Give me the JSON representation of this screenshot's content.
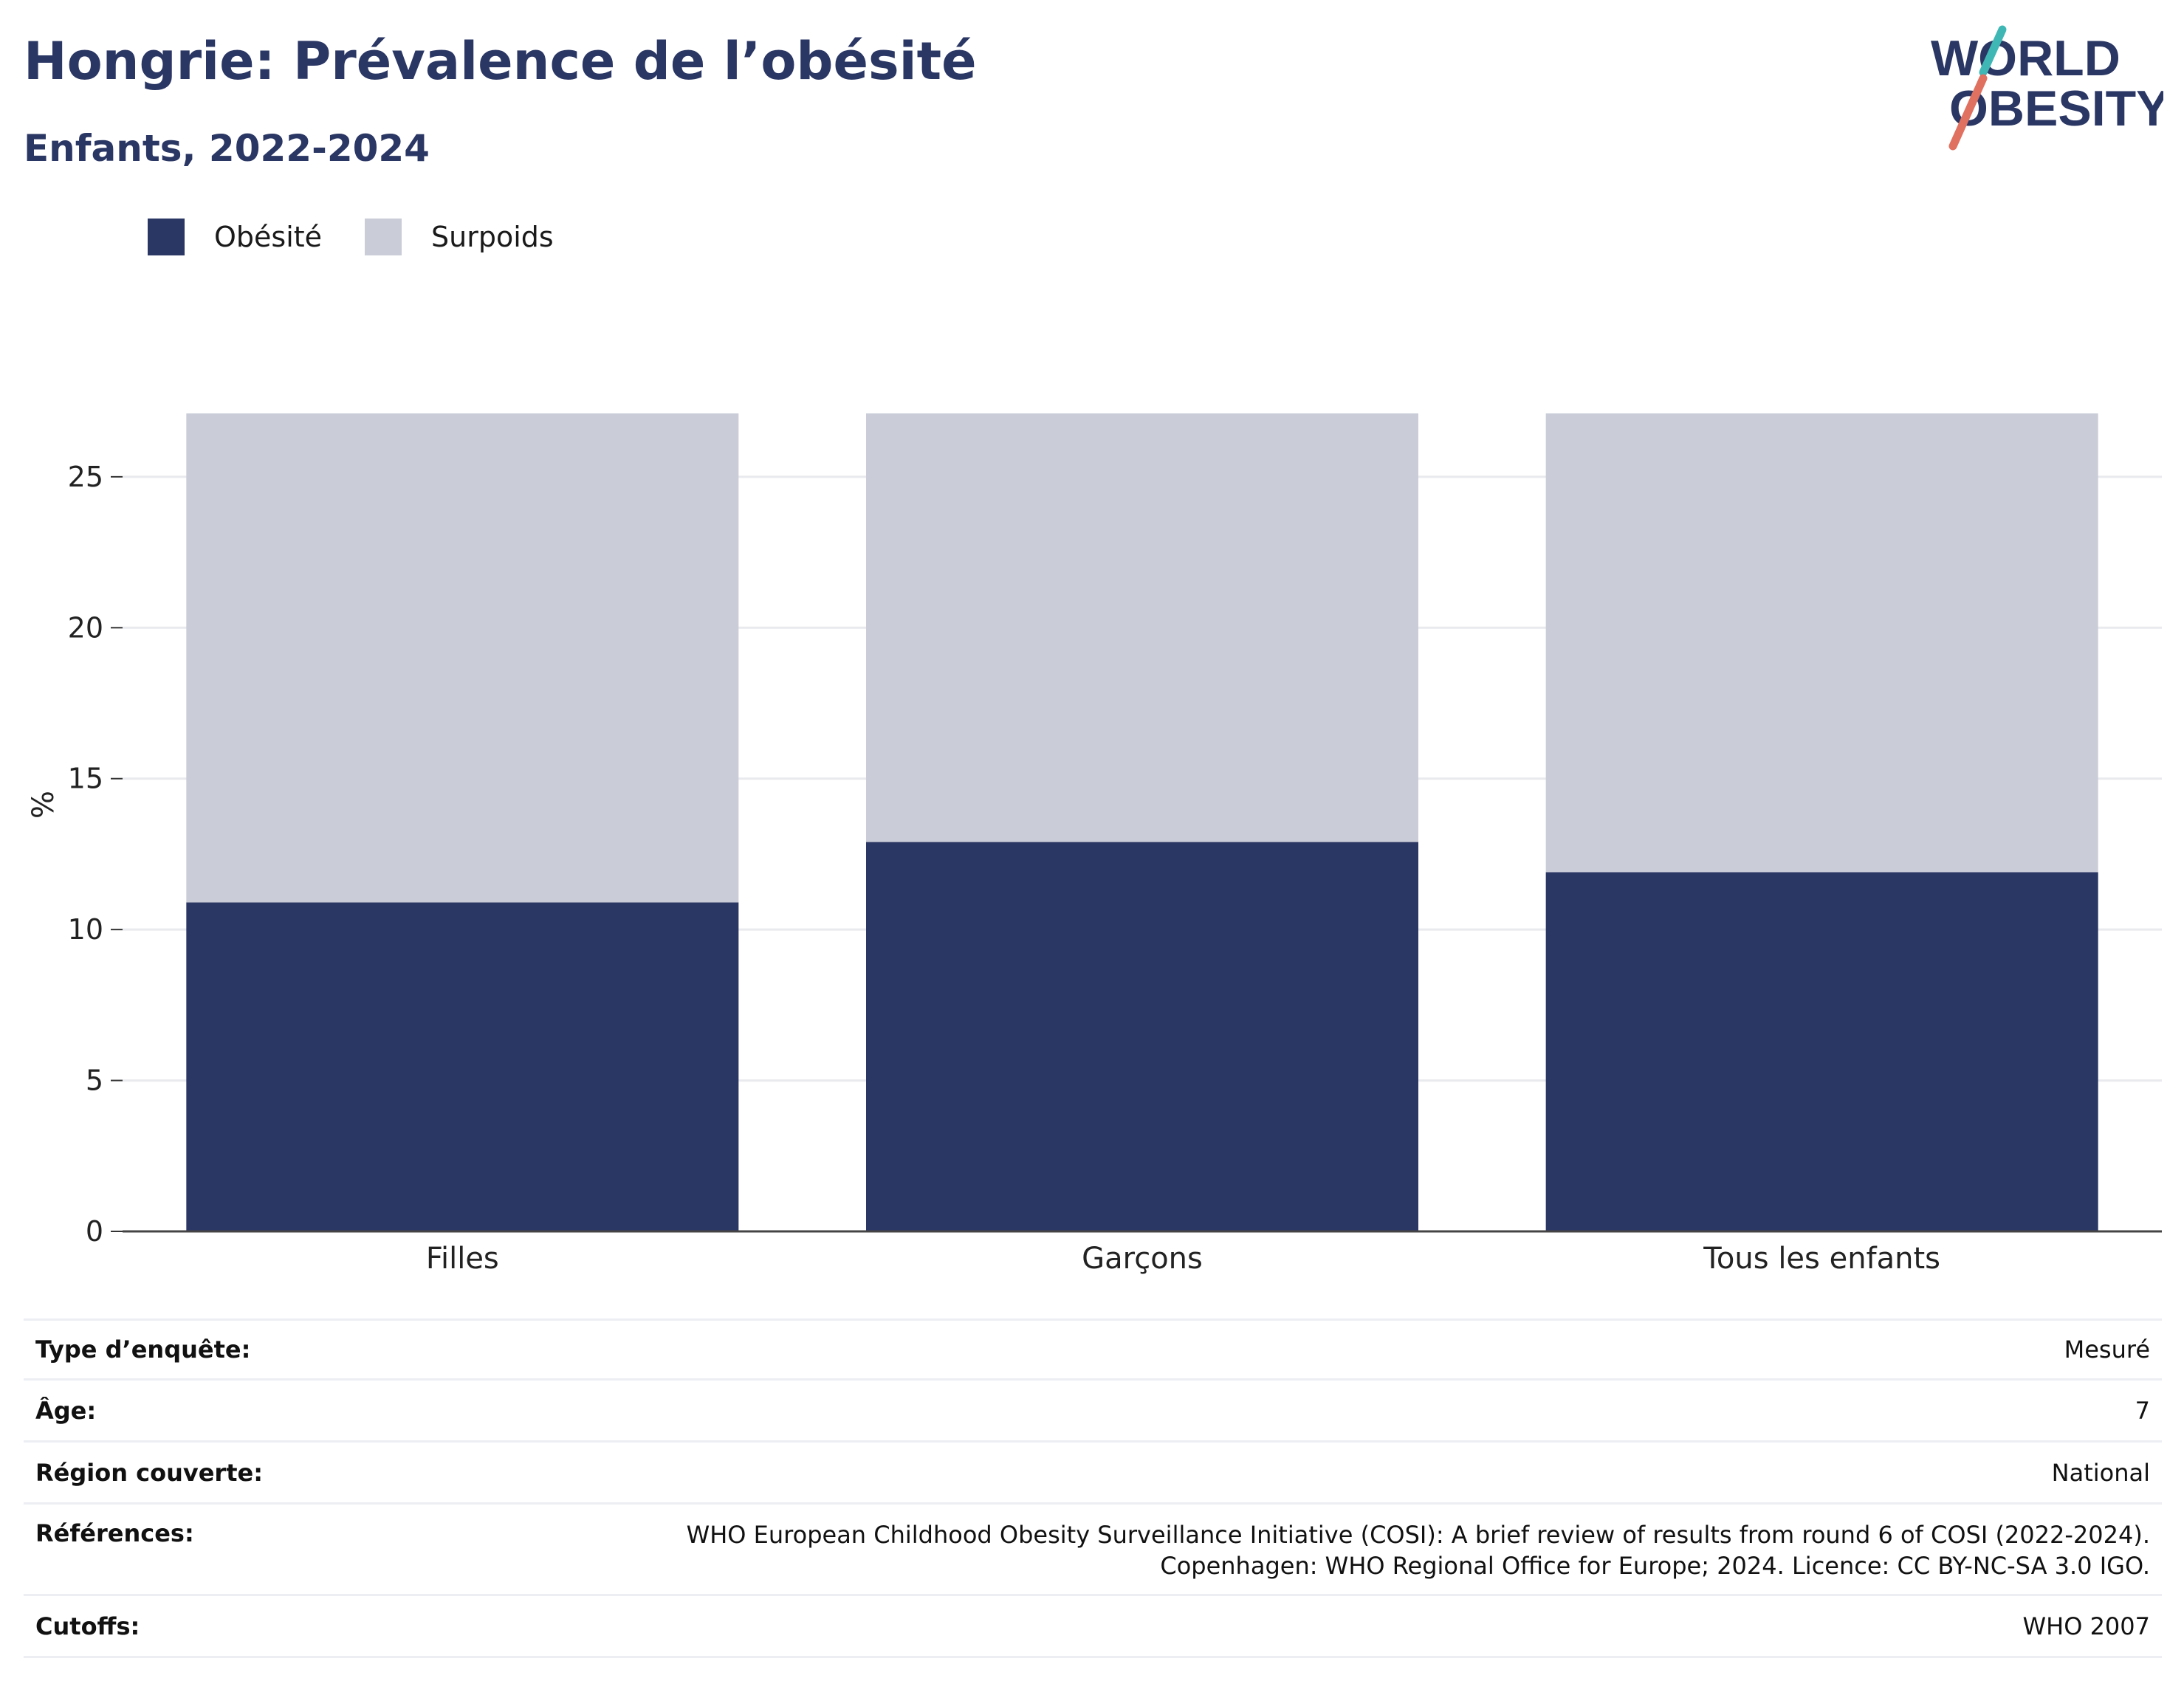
{
  "header": {
    "title": "Hongrie: Prévalence de l’obésité",
    "subtitle": "Enfants, 2022-2024"
  },
  "logo": {
    "line1": "WORLD",
    "line2": "OBESITY",
    "colors": {
      "text": "#2a3663",
      "teal": "#3fb7b5",
      "coral": "#e0705f"
    }
  },
  "colors": {
    "obesity": "#2a3663",
    "overweight": "#cacdd8"
  },
  "chart_data": {
    "type": "bar",
    "stacked": true,
    "categories": [
      "Filles",
      "Garçons",
      "Tous les enfants"
    ],
    "series": [
      {
        "name": "Obésité",
        "values": [
          10.9,
          12.9,
          11.9
        ]
      },
      {
        "name": "Surpoids",
        "values": [
          16.2,
          14.2,
          15.2
        ]
      }
    ],
    "ylabel": "%",
    "ylim": [
      0,
      27.1
    ],
    "yticks": [
      0,
      5,
      10,
      15,
      20,
      25
    ],
    "grid": true,
    "legend": "top-left"
  },
  "info": [
    {
      "key": "Type d’enquête:",
      "value": "Mesuré"
    },
    {
      "key": "Âge:",
      "value": "7"
    },
    {
      "key": "Région couverte:",
      "value": "National"
    },
    {
      "key": "Références:",
      "value": "WHO European Childhood Obesity Surveillance Initiative (COSI): A brief review of results from round 6 of COSI (2022-2024).",
      "value2": "Copenhagen: WHO Regional Office for Europe; 2024. Licence: CC BY-NC-SA 3.0 IGO."
    },
    {
      "key": "Cutoffs:",
      "value": "WHO 2007"
    }
  ]
}
